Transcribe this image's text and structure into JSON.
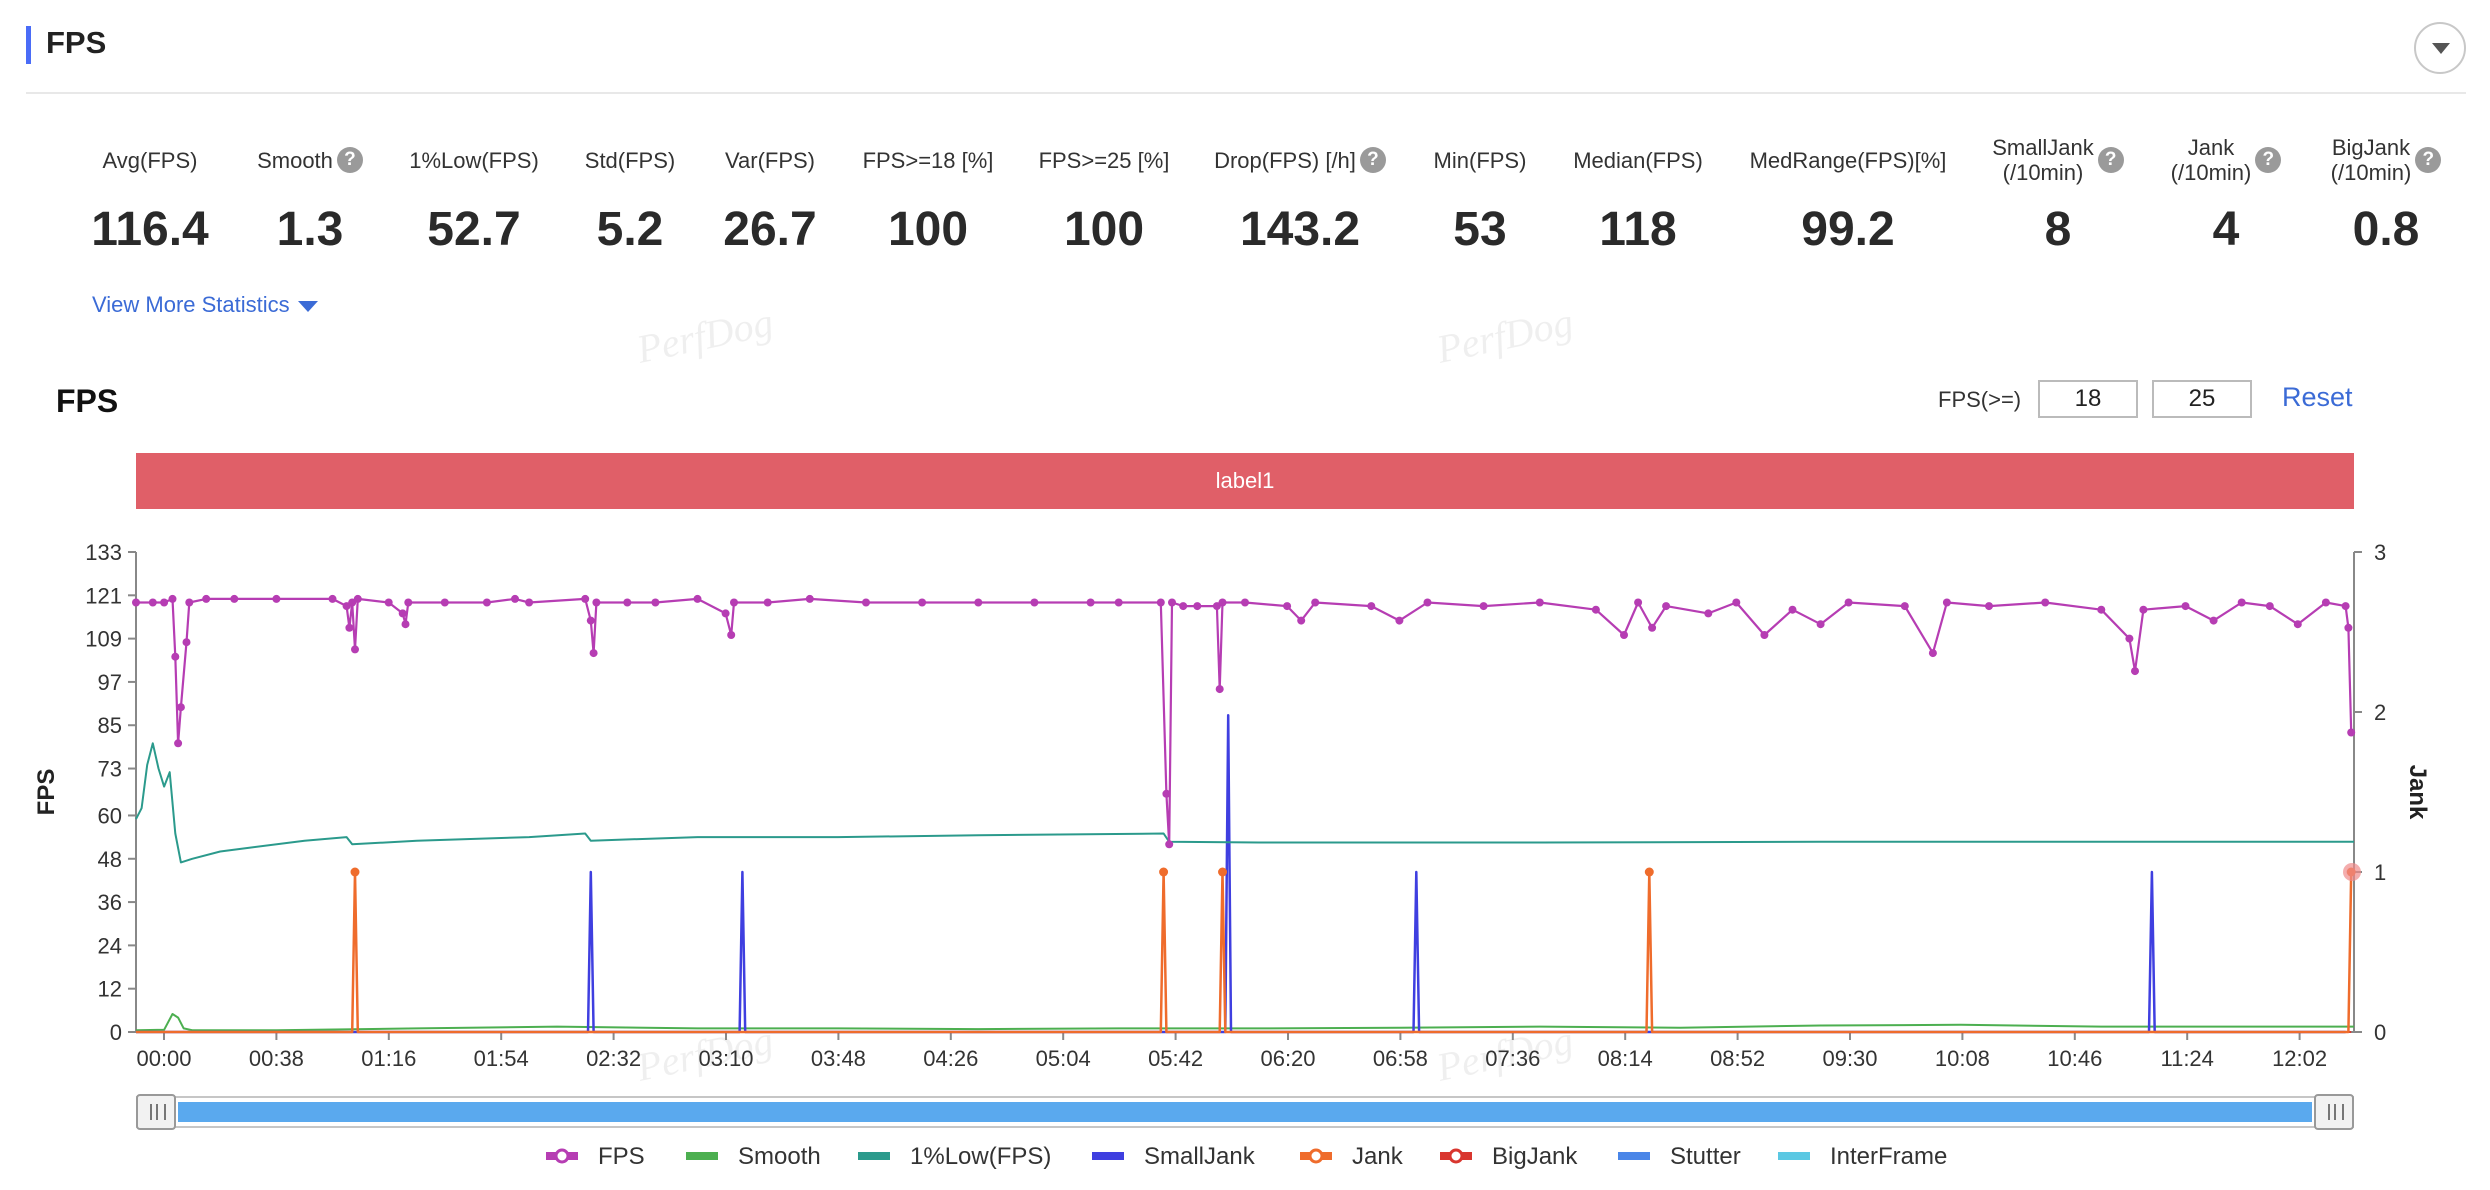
{
  "panel": {
    "title": "FPS"
  },
  "stats": [
    {
      "label": "Avg(FPS)",
      "value": "116.4",
      "help": false
    },
    {
      "label": "Smooth",
      "value": "1.3",
      "help": true
    },
    {
      "label": "1%Low(FPS)",
      "value": "52.7",
      "help": false
    },
    {
      "label": "Std(FPS)",
      "value": "5.2",
      "help": false
    },
    {
      "label": "Var(FPS)",
      "value": "26.7",
      "help": false
    },
    {
      "label": "FPS>=18 [%]",
      "value": "100",
      "help": false
    },
    {
      "label": "FPS>=25 [%]",
      "value": "100",
      "help": false
    },
    {
      "label": "Drop(FPS) [/h]",
      "value": "143.2",
      "help": true
    },
    {
      "label": "Min(FPS)",
      "value": "53",
      "help": false
    },
    {
      "label": "Median(FPS)",
      "value": "118",
      "help": false
    },
    {
      "label": "MedRange(FPS)[%]",
      "value": "99.2",
      "help": false
    },
    {
      "label": "SmallJank\n(/10min)",
      "value": "8",
      "help": true
    },
    {
      "label": "Jank\n(/10min)",
      "value": "4",
      "help": true
    },
    {
      "label": "BigJank\n(/10min)",
      "value": "0.8",
      "help": true
    }
  ],
  "view_more": "View More Statistics",
  "watermark": "PerfDog",
  "chart": {
    "title": "FPS",
    "threshold_label": "FPS(>=)",
    "threshold_values": [
      "18",
      "25"
    ],
    "reset_label": "Reset",
    "label_band": "label1"
  },
  "colors": {
    "fps": "#b63db3",
    "smooth": "#4caf50",
    "low1": "#2b9a8c",
    "small_jank": "#3f3fe0",
    "jank": "#ef6c2c",
    "big_jank": "#d9362f",
    "stutter": "#4a86e8",
    "interframe": "#5bc8e3",
    "label_band": "#e05f68",
    "accent": "#4a6cf7"
  },
  "chart_data": {
    "type": "line",
    "ylabel": "FPS",
    "y2label": "Jank",
    "yticks": [
      0,
      12,
      24,
      36,
      48,
      60,
      73,
      85,
      97,
      109,
      121,
      133
    ],
    "y2ticks": [
      0,
      1,
      2,
      3
    ],
    "ylim": [
      0,
      133
    ],
    "y2lim": [
      0,
      3
    ],
    "xlim": [
      0,
      790
    ],
    "xticks": [
      "00:00",
      "00:38",
      "01:16",
      "01:54",
      "02:32",
      "03:10",
      "03:48",
      "04:26",
      "05:04",
      "05:42",
      "06:20",
      "06:58",
      "07:36",
      "08:14",
      "08:52",
      "09:30",
      "10:08",
      "10:46",
      "11:24",
      "12:02"
    ],
    "legend": [
      "FPS",
      "Smooth",
      "1%Low(FPS)",
      "SmallJank",
      "Jank",
      "BigJank",
      "Stutter",
      "InterFrame"
    ],
    "legend_position": "bottom",
    "grid": false,
    "series": {
      "fps": [
        [
          0,
          119
        ],
        [
          6,
          119
        ],
        [
          10,
          119
        ],
        [
          13,
          120
        ],
        [
          14,
          104
        ],
        [
          15,
          80
        ],
        [
          16,
          90
        ],
        [
          18,
          108
        ],
        [
          19,
          119
        ],
        [
          25,
          120
        ],
        [
          35,
          120
        ],
        [
          50,
          120
        ],
        [
          70,
          120
        ],
        [
          75,
          118
        ],
        [
          76,
          112
        ],
        [
          77,
          119
        ],
        [
          78,
          106
        ],
        [
          79,
          120
        ],
        [
          90,
          119
        ],
        [
          95,
          116
        ],
        [
          96,
          113
        ],
        [
          97,
          119
        ],
        [
          110,
          119
        ],
        [
          125,
          119
        ],
        [
          135,
          120
        ],
        [
          140,
          119
        ],
        [
          160,
          120
        ],
        [
          162,
          114
        ],
        [
          163,
          105
        ],
        [
          164,
          119
        ],
        [
          175,
          119
        ],
        [
          185,
          119
        ],
        [
          200,
          120
        ],
        [
          210,
          116
        ],
        [
          212,
          110
        ],
        [
          213,
          119
        ],
        [
          225,
          119
        ],
        [
          240,
          120
        ],
        [
          260,
          119
        ],
        [
          280,
          119
        ],
        [
          300,
          119
        ],
        [
          320,
          119
        ],
        [
          340,
          119
        ],
        [
          350,
          119
        ],
        [
          365,
          119
        ],
        [
          367,
          66
        ],
        [
          368,
          52
        ],
        [
          369,
          119
        ],
        [
          373,
          118
        ],
        [
          378,
          118
        ],
        [
          385,
          118
        ],
        [
          386,
          95
        ],
        [
          387,
          119
        ],
        [
          395,
          119
        ],
        [
          410,
          118
        ],
        [
          415,
          114
        ],
        [
          420,
          119
        ],
        [
          440,
          118
        ],
        [
          450,
          114
        ],
        [
          460,
          119
        ],
        [
          480,
          118
        ],
        [
          500,
          119
        ],
        [
          520,
          117
        ],
        [
          530,
          110
        ],
        [
          535,
          119
        ],
        [
          540,
          112
        ],
        [
          545,
          118
        ],
        [
          560,
          116
        ],
        [
          570,
          119
        ],
        [
          580,
          110
        ],
        [
          590,
          117
        ],
        [
          600,
          113
        ],
        [
          610,
          119
        ],
        [
          630,
          118
        ],
        [
          640,
          105
        ],
        [
          645,
          119
        ],
        [
          660,
          118
        ],
        [
          680,
          119
        ],
        [
          700,
          117
        ],
        [
          710,
          109
        ],
        [
          712,
          100
        ],
        [
          715,
          117
        ],
        [
          730,
          118
        ],
        [
          740,
          114
        ],
        [
          750,
          119
        ],
        [
          760,
          118
        ],
        [
          770,
          113
        ],
        [
          780,
          119
        ],
        [
          787,
          118
        ],
        [
          788,
          112
        ],
        [
          789,
          83
        ]
      ],
      "low1": [
        [
          0,
          59
        ],
        [
          2,
          62
        ],
        [
          4,
          74
        ],
        [
          6,
          80
        ],
        [
          8,
          73
        ],
        [
          10,
          68
        ],
        [
          12,
          72
        ],
        [
          14,
          55
        ],
        [
          16,
          47
        ],
        [
          20,
          48
        ],
        [
          30,
          50
        ],
        [
          40,
          51
        ],
        [
          60,
          53
        ],
        [
          75,
          54
        ],
        [
          77,
          52
        ],
        [
          100,
          53
        ],
        [
          140,
          54
        ],
        [
          160,
          55
        ],
        [
          162,
          53
        ],
        [
          200,
          54
        ],
        [
          250,
          54
        ],
        [
          300,
          54.5
        ],
        [
          366,
          55
        ],
        [
          368,
          52.7
        ],
        [
          400,
          52.5
        ],
        [
          500,
          52.5
        ],
        [
          600,
          52.7
        ],
        [
          700,
          52.7
        ],
        [
          790,
          52.7
        ]
      ],
      "smooth": [
        [
          0,
          0.5
        ],
        [
          10,
          0.6
        ],
        [
          13,
          5
        ],
        [
          15,
          4
        ],
        [
          17,
          1
        ],
        [
          20,
          0.5
        ],
        [
          50,
          0.5
        ],
        [
          100,
          1
        ],
        [
          150,
          1.5
        ],
        [
          200,
          1
        ],
        [
          250,
          1
        ],
        [
          300,
          0.8
        ],
        [
          350,
          1
        ],
        [
          400,
          1
        ],
        [
          450,
          1.2
        ],
        [
          500,
          1.5
        ],
        [
          550,
          1.2
        ],
        [
          600,
          1.8
        ],
        [
          650,
          2
        ],
        [
          700,
          1.5
        ],
        [
          750,
          1.5
        ],
        [
          790,
          1.5
        ]
      ],
      "small_jank": [
        [
          0,
          0
        ],
        [
          161,
          0
        ],
        [
          162,
          1
        ],
        [
          163,
          0
        ],
        [
          215,
          0
        ],
        [
          216,
          1
        ],
        [
          217,
          0
        ],
        [
          388,
          0
        ],
        [
          389,
          1.98
        ],
        [
          390,
          0
        ],
        [
          455,
          0
        ],
        [
          456,
          1
        ],
        [
          457,
          0
        ],
        [
          717,
          0
        ],
        [
          718,
          1
        ],
        [
          719,
          0
        ],
        [
          787,
          0
        ]
      ],
      "jank": [
        [
          0,
          0
        ],
        [
          77,
          0
        ],
        [
          78,
          1
        ],
        [
          79,
          0
        ],
        [
          365,
          0
        ],
        [
          366,
          1
        ],
        [
          367,
          0
        ],
        [
          386,
          0
        ],
        [
          387,
          1
        ],
        [
          388,
          0
        ],
        [
          538,
          0
        ],
        [
          539,
          1
        ],
        [
          540,
          0
        ],
        [
          788,
          0
        ],
        [
          789,
          1
        ]
      ],
      "big_jank": [
        [
          0,
          0
        ],
        [
          789,
          0
        ]
      ]
    }
  }
}
